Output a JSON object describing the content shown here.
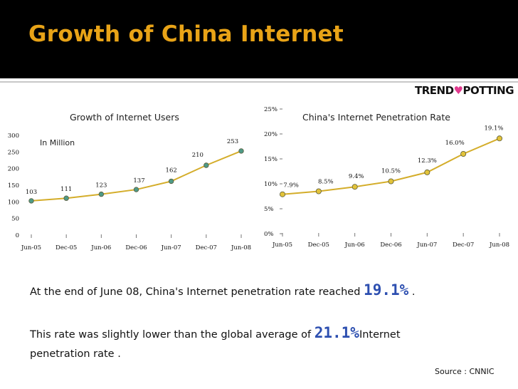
{
  "slide": {
    "title": "Growth of China Internet",
    "logo": {
      "part1": "TREND",
      "heart": "♥",
      "part2": "POTTING"
    },
    "source": "Source : CNNIC",
    "text": {
      "line1_a": "At the end of June 08, China's Internet penetration rate reached ",
      "line1_big": "19.1%",
      "line1_b": " .",
      "line2_a": "This rate was slightly lower than the global average of ",
      "line2_big": "21.1%",
      "line2_b": "Internet",
      "line3": "penetration rate ."
    }
  },
  "colors": {
    "line": "#d4ad2a",
    "users_marker": "#4e9a86",
    "penetration_marker": "#e2c33a",
    "header_bg": "#000000",
    "title": "#e8a317",
    "highlight": "#2d4fb0"
  },
  "chart_data": [
    {
      "type": "line",
      "title": "Growth of Internet Users",
      "unit_label": "In Million",
      "categories": [
        "Jun-05",
        "Dec-05",
        "Jun-06",
        "Dec-06",
        "Jun-07",
        "Dec-07",
        "Jun-08"
      ],
      "values": [
        103,
        111,
        123,
        137,
        162,
        210,
        253
      ],
      "value_labels": [
        "103",
        "111",
        "123",
        "137",
        "162",
        "210",
        "253"
      ],
      "ylim": [
        0,
        300
      ],
      "yticks": [
        "0",
        "50",
        "100",
        "150",
        "200",
        "250",
        "300"
      ],
      "grid": false
    },
    {
      "type": "line",
      "title": "China's Internet Penetration Rate",
      "categories": [
        "Jun-05",
        "Dec-05",
        "Jun-06",
        "Dec-06",
        "Jun-07",
        "Dec-07",
        "Jun-08"
      ],
      "values": [
        7.9,
        8.5,
        9.4,
        10.5,
        12.3,
        16.0,
        19.1
      ],
      "value_labels": [
        "7.9%",
        "8.5%",
        "9.4%",
        "10.5%",
        "12.3%",
        "16.0%",
        "19.1%"
      ],
      "ylim": [
        0,
        25
      ],
      "yticks": [
        "0%",
        "5%",
        "10%",
        "15%",
        "20%",
        "25%"
      ],
      "grid": false
    }
  ]
}
